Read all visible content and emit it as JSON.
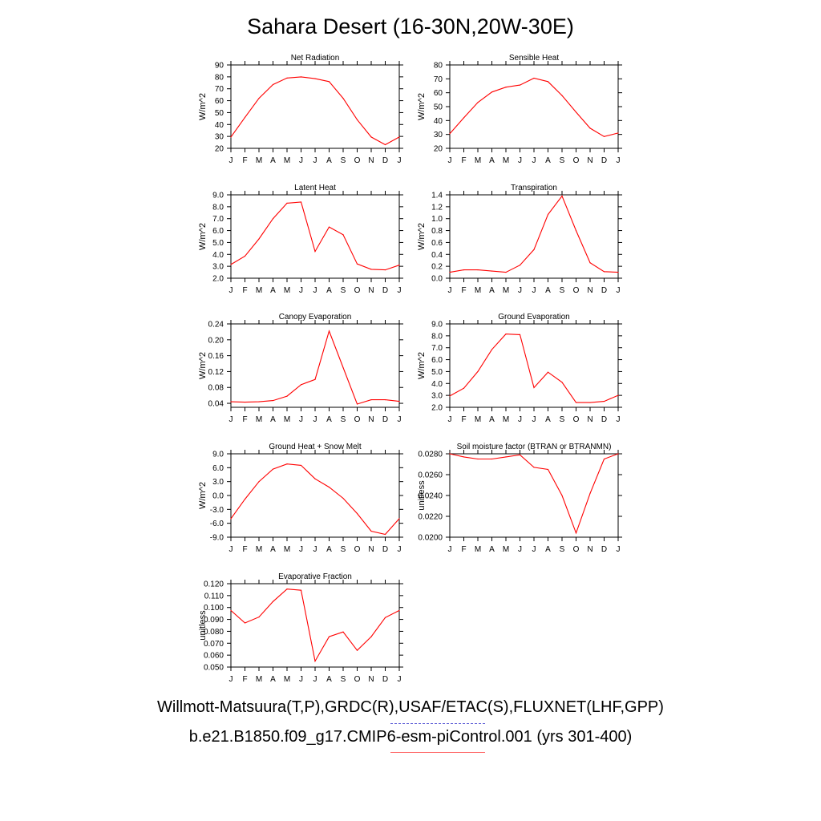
{
  "title": "Sahara Desert (16-30N,20W-30E)",
  "legend": {
    "obs_label": "Willmott-Matsuura(T,P),GRDC(R),USAF/ETAC(S),FLUXNET(LHF,GPP)",
    "model_label": "b.e21.B1850.f09_g17.CMIP6-esm-piControl.001 (yrs 301-400)",
    "obs_color": "#5b5bd6",
    "model_color": "#ff0000"
  },
  "chart_data": [
    {
      "type": "line",
      "title": "Net Radiation",
      "ylabel": "W/m^2",
      "ylim": [
        20,
        90
      ],
      "yticks": [
        "20",
        "30",
        "40",
        "50",
        "60",
        "70",
        "80",
        "90"
      ],
      "xticklabels": [
        "J",
        "F",
        "M",
        "A",
        "M",
        "J",
        "J",
        "A",
        "S",
        "O",
        "N",
        "D",
        "J"
      ],
      "series": [
        {
          "color": "#ff0000",
          "values": [
            29.5,
            46,
            62,
            73.5,
            79,
            80,
            78.5,
            76,
            62,
            44,
            29.5,
            23,
            29.5
          ]
        }
      ]
    },
    {
      "type": "line",
      "title": "Sensible Heat",
      "ylabel": "W/m^2",
      "ylim": [
        20,
        80
      ],
      "yticks": [
        "20",
        "30",
        "40",
        "50",
        "60",
        "70",
        "80"
      ],
      "xticklabels": [
        "J",
        "F",
        "M",
        "A",
        "M",
        "J",
        "J",
        "A",
        "S",
        "O",
        "N",
        "D",
        "J"
      ],
      "series": [
        {
          "color": "#ff0000",
          "values": [
            30.5,
            42,
            53,
            60.5,
            64,
            65.5,
            70.5,
            68,
            58,
            46,
            34.5,
            28.5,
            31
          ]
        }
      ]
    },
    {
      "type": "line",
      "title": "Latent Heat",
      "ylabel": "W/m^2",
      "ylim": [
        2.0,
        9.0
      ],
      "yticks": [
        "2.0",
        "3.0",
        "4.0",
        "5.0",
        "6.0",
        "7.0",
        "8.0",
        "9.0"
      ],
      "xticklabels": [
        "J",
        "F",
        "M",
        "A",
        "M",
        "J",
        "J",
        "A",
        "S",
        "O",
        "N",
        "D",
        "J"
      ],
      "series": [
        {
          "color": "#ff0000",
          "values": [
            3.15,
            3.85,
            5.3,
            7.0,
            8.3,
            8.4,
            4.25,
            6.3,
            5.65,
            3.2,
            2.75,
            2.7,
            3.1
          ]
        }
      ]
    },
    {
      "type": "line",
      "title": "Transpiration",
      "ylabel": "W/m^2",
      "ylim": [
        0.0,
        1.4
      ],
      "yticks": [
        "0.0",
        "0.2",
        "0.4",
        "0.6",
        "0.8",
        "1.0",
        "1.2",
        "1.4"
      ],
      "xticklabels": [
        "J",
        "F",
        "M",
        "A",
        "M",
        "J",
        "J",
        "A",
        "S",
        "O",
        "N",
        "D",
        "J"
      ],
      "series": [
        {
          "color": "#ff0000",
          "values": [
            0.1,
            0.14,
            0.14,
            0.12,
            0.1,
            0.22,
            0.48,
            1.07,
            1.38,
            0.8,
            0.26,
            0.11,
            0.1
          ]
        }
      ]
    },
    {
      "type": "line",
      "title": "Canopy Evaporation",
      "ylabel": "W/m^2",
      "ylim": [
        0.03,
        0.24
      ],
      "yticks": [
        "0.04",
        "0.08",
        "0.12",
        "0.16",
        "0.20",
        "0.24"
      ],
      "xticklabels": [
        "J",
        "F",
        "M",
        "A",
        "M",
        "J",
        "J",
        "A",
        "S",
        "O",
        "N",
        "D",
        "J"
      ],
      "series": [
        {
          "color": "#ff0000",
          "values": [
            0.044,
            0.043,
            0.044,
            0.047,
            0.058,
            0.087,
            0.1,
            0.222,
            0.13,
            0.038,
            0.049,
            0.049,
            0.045
          ]
        }
      ]
    },
    {
      "type": "line",
      "title": "Ground Evaporation",
      "ylabel": "W/m^2",
      "ylim": [
        2.0,
        9.0
      ],
      "yticks": [
        "2.0",
        "3.0",
        "4.0",
        "5.0",
        "6.0",
        "7.0",
        "8.0",
        "9.0"
      ],
      "xticklabels": [
        "J",
        "F",
        "M",
        "A",
        "M",
        "J",
        "J",
        "A",
        "S",
        "O",
        "N",
        "D",
        "J"
      ],
      "series": [
        {
          "color": "#ff0000",
          "values": [
            2.95,
            3.6,
            5.0,
            6.85,
            8.15,
            8.1,
            3.65,
            4.95,
            4.1,
            2.4,
            2.4,
            2.5,
            3.0
          ]
        }
      ]
    },
    {
      "type": "line",
      "title": "Ground Heat + Snow Melt",
      "ylabel": "W/m^2",
      "ylim": [
        -9.0,
        9.0
      ],
      "yticks": [
        "-9.0",
        "-6.0",
        "-3.0",
        "0.0",
        "3.0",
        "6.0",
        "9.0"
      ],
      "xticklabels": [
        "J",
        "F",
        "M",
        "A",
        "M",
        "J",
        "J",
        "A",
        "S",
        "O",
        "N",
        "D",
        "J"
      ],
      "series": [
        {
          "color": "#ff0000",
          "values": [
            -5.0,
            -0.8,
            3.0,
            5.7,
            6.8,
            6.5,
            3.6,
            1.8,
            -0.6,
            -3.9,
            -7.7,
            -8.4,
            -5.0
          ]
        }
      ]
    },
    {
      "type": "line",
      "title": "Soil moisture factor (BTRAN or BTRANMN)",
      "ylabel": "unitless",
      "ylim": [
        0.02,
        0.028
      ],
      "yticks": [
        "0.0200",
        "0.0220",
        "0.0240",
        "0.0260",
        "0.0280"
      ],
      "xticklabels": [
        "J",
        "F",
        "M",
        "A",
        "M",
        "J",
        "J",
        "A",
        "S",
        "O",
        "N",
        "D",
        "J"
      ],
      "series": [
        {
          "color": "#ff0000",
          "values": [
            0.028,
            0.0277,
            0.0275,
            0.0275,
            0.0277,
            0.0279,
            0.0267,
            0.0265,
            0.024,
            0.0204,
            0.0242,
            0.0275,
            0.028
          ]
        }
      ]
    },
    {
      "type": "line",
      "title": "Evaporative Fraction",
      "ylabel": "unitless",
      "ylim": [
        0.05,
        0.12
      ],
      "yticks": [
        "0.050",
        "0.060",
        "0.070",
        "0.080",
        "0.090",
        "0.100",
        "0.110",
        "0.120"
      ],
      "xticklabels": [
        "J",
        "F",
        "M",
        "A",
        "M",
        "J",
        "J",
        "A",
        "S",
        "O",
        "N",
        "D",
        "J"
      ],
      "series": [
        {
          "color": "#ff0000",
          "values": [
            0.0975,
            0.087,
            0.092,
            0.105,
            0.1155,
            0.1145,
            0.055,
            0.0755,
            0.0795,
            0.064,
            0.0755,
            0.0915,
            0.0975
          ]
        }
      ]
    }
  ]
}
